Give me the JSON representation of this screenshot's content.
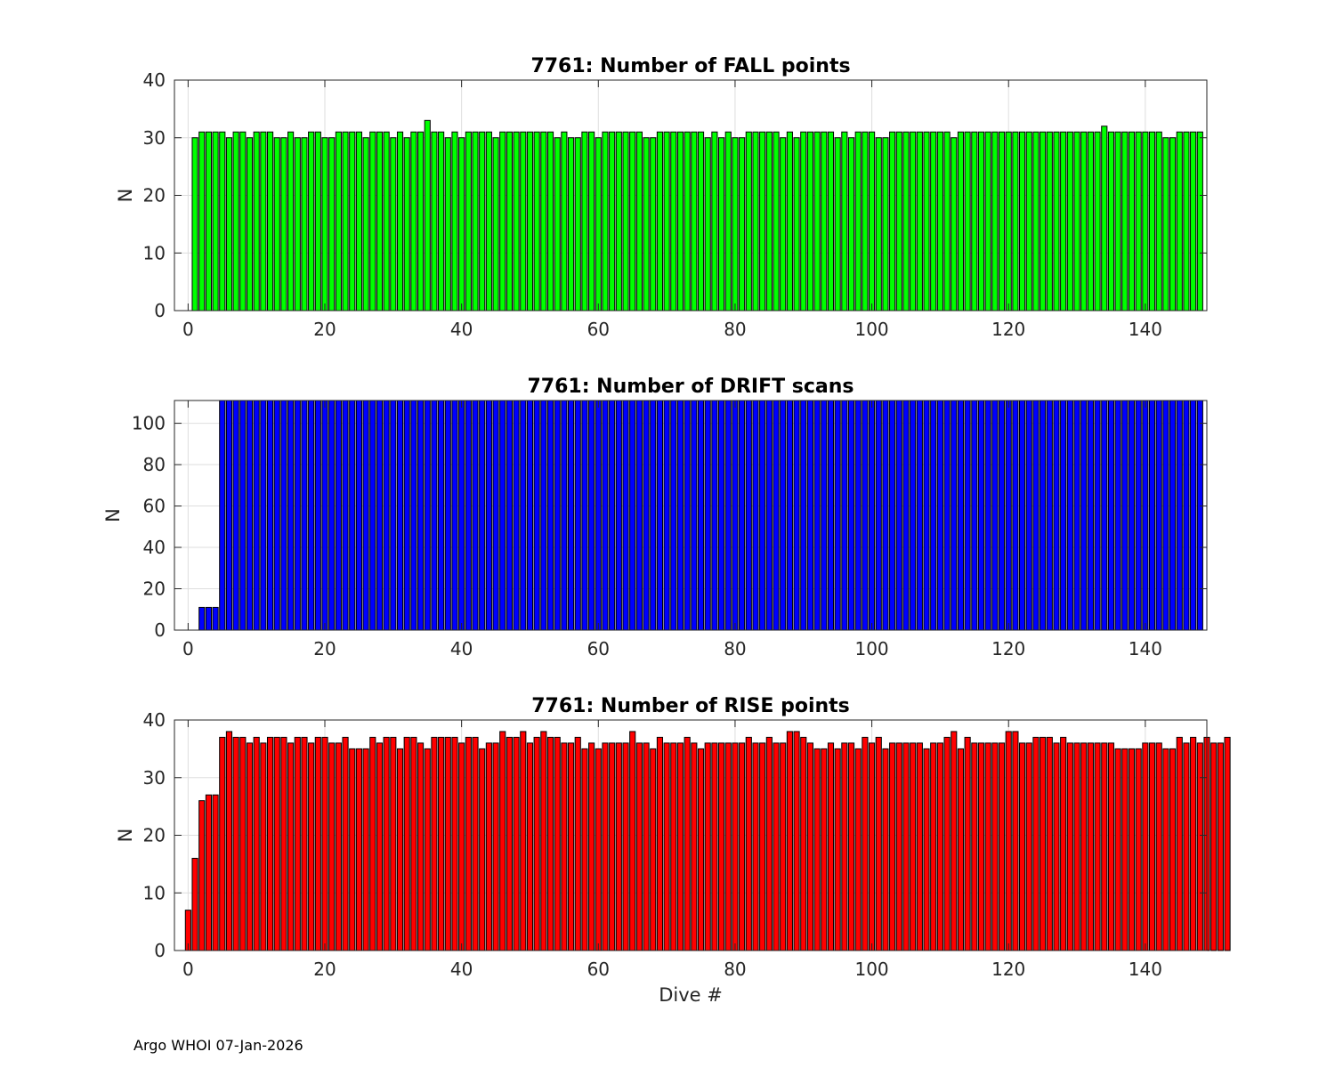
{
  "footer": "Argo WHOI 07-Jan-2026",
  "chart_data": [
    {
      "type": "bar",
      "title": "7761: Number of FALL points",
      "xlabel": "",
      "ylabel": "N",
      "color": "#00ff00",
      "xlim": [
        -2,
        149
      ],
      "ylim": [
        0,
        40
      ],
      "xticks": [
        0,
        20,
        40,
        60,
        80,
        100,
        120,
        140
      ],
      "yticks": [
        0,
        10,
        20,
        30,
        40
      ],
      "grid": true,
      "x_start": 0,
      "values": [
        0,
        30,
        31,
        31,
        31,
        31,
        30,
        31,
        31,
        30,
        31,
        31,
        31,
        30,
        30,
        31,
        30,
        30,
        31,
        31,
        30,
        30,
        31,
        31,
        31,
        31,
        30,
        31,
        31,
        31,
        30,
        31,
        30,
        31,
        31,
        33,
        31,
        31,
        30,
        31,
        30,
        31,
        31,
        31,
        31,
        30,
        31,
        31,
        31,
        31,
        31,
        31,
        31,
        31,
        30,
        31,
        30,
        30,
        31,
        31,
        30,
        31,
        31,
        31,
        31,
        31,
        31,
        30,
        30,
        31,
        31,
        31,
        31,
        31,
        31,
        31,
        30,
        31,
        30,
        31,
        30,
        30,
        31,
        31,
        31,
        31,
        31,
        30,
        31,
        30,
        31,
        31,
        31,
        31,
        31,
        30,
        31,
        30,
        31,
        31,
        31,
        30,
        30,
        31,
        31,
        31,
        31,
        31,
        31,
        31,
        31,
        31,
        30,
        31,
        31,
        31,
        31,
        31,
        31,
        31,
        31,
        31,
        31,
        31,
        31,
        31,
        31,
        31,
        31,
        31,
        31,
        31,
        31,
        31,
        32,
        31,
        31,
        31,
        31,
        31,
        31,
        31,
        31,
        30,
        30,
        31,
        31,
        31,
        31
      ]
    },
    {
      "type": "bar",
      "title": "7761: Number of DRIFT scans",
      "xlabel": "",
      "ylabel": "N",
      "color": "#0000ff",
      "xlim": [
        -2,
        149
      ],
      "ylim": [
        0,
        111
      ],
      "xticks": [
        0,
        20,
        40,
        60,
        80,
        100,
        120,
        140
      ],
      "yticks": [
        0,
        20,
        40,
        60,
        80,
        100
      ],
      "grid": true,
      "x_start": 0,
      "values": [
        0,
        0,
        11,
        11,
        11,
        111,
        111,
        111,
        111,
        111,
        111,
        111,
        111,
        111,
        111,
        111,
        111,
        111,
        111,
        111,
        111,
        111,
        111,
        111,
        111,
        111,
        111,
        111,
        111,
        111,
        111,
        111,
        111,
        111,
        111,
        111,
        111,
        111,
        111,
        111,
        111,
        111,
        111,
        111,
        111,
        111,
        111,
        111,
        111,
        111,
        111,
        111,
        111,
        111,
        111,
        111,
        111,
        111,
        111,
        111,
        111,
        111,
        111,
        111,
        111,
        111,
        111,
        111,
        111,
        111,
        111,
        111,
        111,
        111,
        111,
        111,
        111,
        111,
        111,
        111,
        111,
        111,
        111,
        111,
        111,
        111,
        111,
        111,
        111,
        111,
        111,
        111,
        111,
        111,
        111,
        111,
        111,
        111,
        111,
        111,
        111,
        111,
        111,
        111,
        111,
        111,
        111,
        111,
        111,
        111,
        111,
        111,
        111,
        111,
        111,
        111,
        111,
        111,
        111,
        111,
        111,
        111,
        111,
        111,
        111,
        111,
        111,
        111,
        111,
        111,
        111,
        111,
        111,
        111,
        111,
        111,
        111,
        111,
        111,
        111,
        111,
        111,
        111,
        111,
        111,
        111,
        111,
        111,
        111
      ]
    },
    {
      "type": "bar",
      "title": "7761: Number of RISE points",
      "xlabel": "Dive #",
      "ylabel": "N",
      "color": "#ff0000",
      "xlim": [
        -2,
        149
      ],
      "ylim": [
        0,
        40
      ],
      "xticks": [
        0,
        20,
        40,
        60,
        80,
        100,
        120,
        140
      ],
      "yticks": [
        0,
        10,
        20,
        30,
        40
      ],
      "grid": true,
      "x_start": 0,
      "values": [
        7,
        16,
        26,
        27,
        27,
        37,
        38,
        37,
        37,
        36,
        37,
        36,
        37,
        37,
        37,
        36,
        37,
        37,
        36,
        37,
        37,
        36,
        36,
        37,
        35,
        35,
        35,
        37,
        36,
        37,
        37,
        35,
        37,
        37,
        36,
        35,
        37,
        37,
        37,
        37,
        36,
        37,
        37,
        35,
        36,
        36,
        38,
        37,
        37,
        38,
        36,
        37,
        38,
        37,
        37,
        36,
        36,
        37,
        35,
        36,
        35,
        36,
        36,
        36,
        36,
        38,
        36,
        36,
        35,
        37,
        36,
        36,
        36,
        37,
        36,
        35,
        36,
        36,
        36,
        36,
        36,
        36,
        37,
        36,
        36,
        37,
        36,
        36,
        38,
        38,
        37,
        36,
        35,
        35,
        36,
        35,
        36,
        36,
        35,
        37,
        36,
        37,
        35,
        36,
        36,
        36,
        36,
        36,
        35,
        36,
        36,
        37,
        38,
        35,
        37,
        36,
        36,
        36,
        36,
        36,
        38,
        38,
        36,
        36,
        37,
        37,
        37,
        36,
        37,
        36,
        36,
        36,
        36,
        36,
        36,
        36,
        35,
        35,
        35,
        35,
        36,
        36,
        36,
        35,
        35,
        37,
        36,
        37,
        36,
        37,
        36,
        36,
        37
      ]
    }
  ]
}
